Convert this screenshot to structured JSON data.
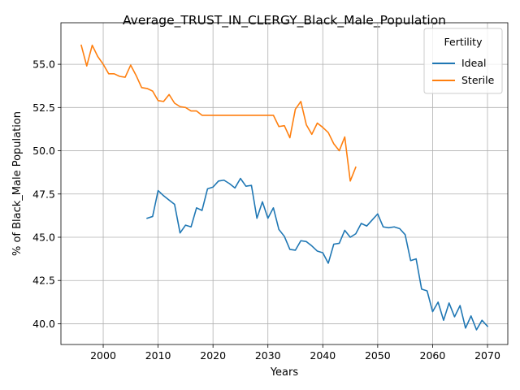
{
  "chart_data": {
    "type": "line",
    "title": "Average_TRUST_IN_CLERGY_Black_Male_Population",
    "xlabel": "Years",
    "ylabel": "% of Black_Male Population",
    "xlim": [
      1992.3,
      2073.7
    ],
    "ylim": [
      38.8,
      57.4
    ],
    "xticks": [
      2000,
      2010,
      2020,
      2030,
      2040,
      2050,
      2060,
      2070
    ],
    "yticks": [
      40.0,
      42.5,
      45.0,
      47.5,
      50.0,
      52.5,
      55.0
    ],
    "grid": true,
    "legend": {
      "title": "Fertility",
      "position": "top-right"
    },
    "series": [
      {
        "name": "Ideal",
        "color": "#1f77b4",
        "x": [
          2008,
          2009,
          2010,
          2011,
          2012,
          2013,
          2014,
          2015,
          2016,
          2017,
          2018,
          2019,
          2020,
          2021,
          2022,
          2023,
          2024,
          2025,
          2026,
          2027,
          2028,
          2029,
          2030,
          2031,
          2032,
          2033,
          2034,
          2035,
          2036,
          2037,
          2038,
          2039,
          2040,
          2041,
          2042,
          2043,
          2044,
          2045,
          2046,
          2047,
          2048,
          2049,
          2050,
          2051,
          2052,
          2053,
          2054,
          2055,
          2056,
          2057,
          2058,
          2059,
          2060,
          2061,
          2062,
          2063,
          2064,
          2065,
          2066,
          2067,
          2068,
          2069,
          2070
        ],
        "y": [
          46.1,
          46.2,
          47.7,
          47.4,
          47.15,
          46.9,
          45.25,
          45.7,
          45.6,
          46.7,
          46.55,
          47.8,
          47.9,
          48.25,
          48.3,
          48.1,
          47.85,
          48.4,
          47.95,
          48.0,
          46.1,
          47.05,
          46.1,
          46.7,
          45.45,
          45.05,
          44.3,
          44.25,
          44.8,
          44.75,
          44.5,
          44.2,
          44.1,
          43.5,
          44.6,
          44.65,
          45.4,
          45.0,
          45.2,
          45.8,
          45.65,
          46.0,
          46.35,
          45.6,
          45.55,
          45.6,
          45.5,
          45.15,
          43.65,
          43.75,
          42.0,
          41.9,
          40.7,
          41.25,
          40.2,
          41.2,
          40.4,
          41.05,
          39.75,
          40.45,
          39.65,
          40.2,
          39.85
        ]
      },
      {
        "name": "Sterile",
        "color": "#ff7f0e",
        "x": [
          1996,
          1997,
          1998,
          1999,
          2000,
          2001,
          2002,
          2003,
          2004,
          2005,
          2006,
          2007,
          2008,
          2009,
          2010,
          2011,
          2012,
          2013,
          2014,
          2015,
          2016,
          2017,
          2018,
          2019,
          2020,
          2021,
          2022,
          2023,
          2024,
          2025,
          2026,
          2027,
          2028,
          2029,
          2030,
          2031,
          2032,
          2033,
          2034,
          2035,
          2036,
          2037,
          2038,
          2039,
          2040,
          2041,
          2042,
          2043,
          2044,
          2045,
          2046
        ],
        "y": [
          56.1,
          54.9,
          56.1,
          55.45,
          55.0,
          54.45,
          54.45,
          54.3,
          54.25,
          54.95,
          54.35,
          53.65,
          53.6,
          53.45,
          52.9,
          52.85,
          53.25,
          52.75,
          52.55,
          52.5,
          52.3,
          52.3,
          52.05,
          52.05,
          52.05,
          52.05,
          52.05,
          52.05,
          52.05,
          52.05,
          52.05,
          52.05,
          52.05,
          52.05,
          52.05,
          52.05,
          51.4,
          51.45,
          50.75,
          52.4,
          52.85,
          51.5,
          50.95,
          51.6,
          51.35,
          51.05,
          50.4,
          50.0,
          50.8,
          48.25,
          49.05
        ]
      }
    ]
  }
}
